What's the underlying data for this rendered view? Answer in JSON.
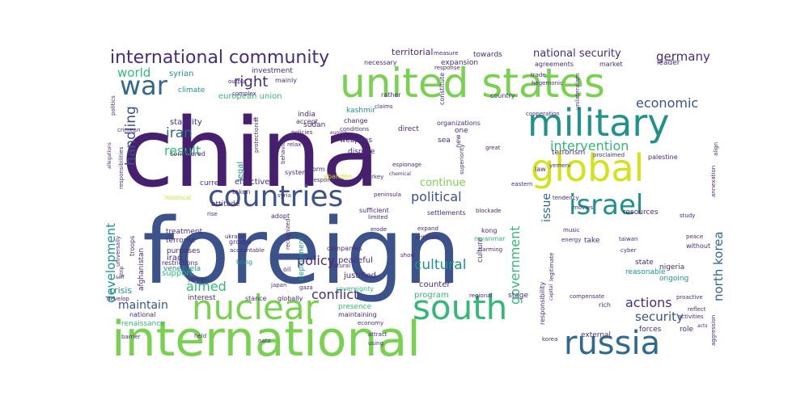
{
  "palette": {
    "dark_purple": "#46206f",
    "purple": "#472c7a",
    "indigo": "#3b528b",
    "blue": "#31688e",
    "teal": "#21918c",
    "green": "#35b779",
    "lime": "#7ad151",
    "yellow": "#d2e21b"
  },
  "words": [
    {
      "text": "china",
      "color": "dark_purple"
    },
    {
      "text": "foreign",
      "color": "indigo"
    },
    {
      "text": "united states",
      "color": "lime"
    },
    {
      "text": "international",
      "color": "lime"
    },
    {
      "text": "military",
      "color": "teal"
    },
    {
      "text": "global",
      "color": "yellow"
    },
    {
      "text": "countries",
      "color": "indigo"
    },
    {
      "text": "nuclear",
      "color": "lime"
    },
    {
      "text": "south",
      "color": "green"
    },
    {
      "text": "russia",
      "color": "blue"
    },
    {
      "text": "israel",
      "color": "teal"
    },
    {
      "text": "war",
      "color": "blue"
    },
    {
      "text": "international community",
      "color": "purple"
    },
    {
      "text": "germany",
      "color": "purple"
    },
    {
      "text": "national security",
      "color": "purple"
    },
    {
      "text": "territorial",
      "color": "purple"
    },
    {
      "text": "right",
      "color": "purple"
    },
    {
      "text": "world",
      "color": "green"
    },
    {
      "text": "iran",
      "color": "blue"
    },
    {
      "text": "result",
      "color": "green"
    },
    {
      "text": "handling",
      "color": "indigo"
    },
    {
      "text": "economic",
      "color": "indigo"
    },
    {
      "text": "intervention",
      "color": "green"
    },
    {
      "text": "political",
      "color": "indigo"
    },
    {
      "text": "continue",
      "color": "lime"
    },
    {
      "text": "cultural",
      "color": "teal"
    },
    {
      "text": "policy",
      "color": "purple"
    },
    {
      "text": "government",
      "color": "green"
    },
    {
      "text": "conflict",
      "color": "purple"
    },
    {
      "text": "north korea",
      "color": "blue"
    },
    {
      "text": "actions",
      "color": "purple"
    },
    {
      "text": "security",
      "color": "indigo"
    },
    {
      "text": "maintain",
      "color": "indigo"
    },
    {
      "text": "aimed",
      "color": "green"
    },
    {
      "text": "development",
      "color": "teal"
    },
    {
      "text": "issue",
      "color": "blue"
    },
    {
      "text": "syrian",
      "color": "teal"
    },
    {
      "text": "investment",
      "color": "purple"
    },
    {
      "text": "european union",
      "color": "green"
    },
    {
      "text": "kashmir",
      "color": "teal"
    },
    {
      "text": "stability",
      "color": "purple"
    },
    {
      "text": "india",
      "color": "purple"
    },
    {
      "text": "sudan",
      "color": "purple"
    },
    {
      "text": "weapons",
      "color": "purple"
    },
    {
      "text": "dispute",
      "color": "purple"
    },
    {
      "text": "effective",
      "color": "purple"
    },
    {
      "text": "peaceful",
      "color": "purple"
    },
    {
      "text": "justified",
      "color": "purple"
    },
    {
      "text": "support",
      "color": "green"
    },
    {
      "text": "crisis",
      "color": "teal"
    },
    {
      "text": "iraq",
      "color": "purple"
    },
    {
      "text": "terrorist",
      "color": "purple"
    },
    {
      "text": "treatment",
      "color": "purple"
    },
    {
      "text": "counter",
      "color": "purple"
    },
    {
      "text": "resources",
      "color": "purple"
    },
    {
      "text": "terrorism",
      "color": "purple"
    },
    {
      "text": "expansion",
      "color": "purple"
    },
    {
      "text": "towards",
      "color": "purple"
    },
    {
      "text": "economy",
      "color": "purple"
    },
    {
      "text": "deployment",
      "color": "teal"
    },
    {
      "text": "program",
      "color": "green"
    },
    {
      "text": "culture",
      "color": "purple"
    },
    {
      "text": "legal",
      "color": "teal"
    },
    {
      "text": "ongoing",
      "color": "teal"
    },
    {
      "text": "nigeria",
      "color": "purple"
    },
    {
      "text": "state",
      "color": "purple"
    },
    {
      "text": "reasonable",
      "color": "teal"
    },
    {
      "text": "stage",
      "color": "purple"
    },
    {
      "text": "forces",
      "color": "purple"
    },
    {
      "text": "external",
      "color": "purple"
    },
    {
      "text": "role",
      "color": "purple"
    },
    {
      "text": "interest",
      "color": "purple"
    },
    {
      "text": "presence",
      "color": "green"
    },
    {
      "text": "globally",
      "color": "purple"
    },
    {
      "text": "stance",
      "color": "purple"
    },
    {
      "text": "maintaining",
      "color": "purple"
    },
    {
      "text": "national",
      "color": "purple"
    },
    {
      "text": "renaissance",
      "color": "green"
    },
    {
      "text": "afghanistan",
      "color": "purple"
    },
    {
      "text": "venezuela",
      "color": "teal"
    },
    {
      "text": "restrictions",
      "color": "purple"
    },
    {
      "text": "purposes",
      "color": "purple"
    },
    {
      "text": "accountable",
      "color": "purple"
    },
    {
      "text": "hong",
      "color": "teal"
    },
    {
      "text": "kong",
      "color": "purple"
    },
    {
      "text": "groups",
      "color": "purple"
    },
    {
      "text": "companies",
      "color": "purple"
    },
    {
      "text": "sufficient",
      "color": "purple"
    },
    {
      "text": "limited",
      "color": "purple"
    },
    {
      "text": "settlements",
      "color": "purple"
    },
    {
      "text": "blockade",
      "color": "purple"
    },
    {
      "text": "myanmar",
      "color": "green"
    },
    {
      "text": "harming",
      "color": "purple"
    },
    {
      "text": "criticism",
      "color": "purple"
    },
    {
      "text": "erode",
      "color": "purple"
    },
    {
      "text": "expand",
      "color": "purple"
    },
    {
      "text": "natural",
      "color": "purple"
    },
    {
      "text": "oil",
      "color": "purple"
    },
    {
      "text": "japan",
      "color": "purple"
    },
    {
      "text": "gaza",
      "color": "purple"
    },
    {
      "text": "sovereignty",
      "color": "green"
    },
    {
      "text": "show",
      "color": "purple"
    },
    {
      "text": "adopt",
      "color": "purple"
    },
    {
      "text": "attitude",
      "color": "purple"
    },
    {
      "text": "historical",
      "color": "yellow"
    },
    {
      "text": "rise",
      "color": "purple"
    },
    {
      "text": "current",
      "color": "purple"
    },
    {
      "text": "taken",
      "color": "purple"
    },
    {
      "text": "form",
      "color": "purple"
    },
    {
      "text": "abandon",
      "color": "yellow"
    },
    {
      "text": "syria",
      "color": "purple"
    },
    {
      "text": "responsible",
      "color": "purple"
    },
    {
      "text": "turkey",
      "color": "purple"
    },
    {
      "text": "peninsula",
      "color": "purple"
    },
    {
      "text": "chemical",
      "color": "purple"
    },
    {
      "text": "espionage",
      "color": "purple"
    },
    {
      "text": "claims",
      "color": "purple"
    },
    {
      "text": "rather",
      "color": "purple"
    },
    {
      "text": "response",
      "color": "purple"
    },
    {
      "text": "measure",
      "color": "purple"
    },
    {
      "text": "necessary",
      "color": "purple"
    },
    {
      "text": "mainly",
      "color": "purple"
    },
    {
      "text": "complex",
      "color": "purple"
    },
    {
      "text": "output",
      "color": "purple"
    },
    {
      "text": "climate",
      "color": "teal"
    },
    {
      "text": "accept",
      "color": "purple"
    },
    {
      "text": "ii",
      "color": "purple"
    },
    {
      "text": "policies",
      "color": "purple"
    },
    {
      "text": "relax",
      "color": "purple"
    },
    {
      "text": "considered",
      "color": "purple"
    },
    {
      "text": "protectionist",
      "color": "purple"
    },
    {
      "text": "behavior",
      "color": "purple"
    },
    {
      "text": "systems",
      "color": "purple"
    },
    {
      "text": "change",
      "color": "purple"
    },
    {
      "text": "europe",
      "color": "purple"
    },
    {
      "text": "conditions",
      "color": "purple"
    },
    {
      "text": "organizations",
      "color": "purple"
    },
    {
      "text": "direct",
      "color": "purple"
    },
    {
      "text": "sea",
      "color": "purple"
    },
    {
      "text": "one",
      "color": "purple"
    },
    {
      "text": "new",
      "color": "purple"
    },
    {
      "text": "constitute",
      "color": "purple"
    },
    {
      "text": "superiority",
      "color": "purple"
    },
    {
      "text": "country",
      "color": "purple"
    },
    {
      "text": "cooperation",
      "color": "purple"
    },
    {
      "text": "trade",
      "color": "purple"
    },
    {
      "text": "hegemonic",
      "color": "purple"
    },
    {
      "text": "agreements",
      "color": "purple"
    },
    {
      "text": "market",
      "color": "purple"
    },
    {
      "text": "leader",
      "color": "purple"
    },
    {
      "text": "unilateralism",
      "color": "purple"
    },
    {
      "text": "yemeni",
      "color": "purple"
    },
    {
      "text": "proclaimed",
      "color": "purple"
    },
    {
      "text": "palestine",
      "color": "purple"
    },
    {
      "text": "great",
      "color": "purple"
    },
    {
      "text": "eastern",
      "color": "purple"
    },
    {
      "text": "law",
      "color": "purple"
    },
    {
      "text": "tendency",
      "color": "purple"
    },
    {
      "text": "movies",
      "color": "purple"
    },
    {
      "text": "study",
      "color": "purple"
    },
    {
      "text": "annexation",
      "color": "purple"
    },
    {
      "text": "taiwan",
      "color": "purple"
    },
    {
      "text": "cyber",
      "color": "purple"
    },
    {
      "text": "peace",
      "color": "purple"
    },
    {
      "text": "without",
      "color": "purple"
    },
    {
      "text": "take",
      "color": "purple"
    },
    {
      "text": "music",
      "color": "purple"
    },
    {
      "text": "energy",
      "color": "purple"
    },
    {
      "text": "legitimate",
      "color": "purple"
    },
    {
      "text": "proactive",
      "color": "purple"
    },
    {
      "text": "reflect",
      "color": "purple"
    },
    {
      "text": "activities",
      "color": "purple"
    },
    {
      "text": "acts",
      "color": "purple"
    },
    {
      "text": "compensate",
      "color": "purple"
    },
    {
      "text": "rich",
      "color": "purple"
    },
    {
      "text": "regional",
      "color": "purple"
    },
    {
      "text": "capital",
      "color": "purple"
    },
    {
      "text": "korea",
      "color": "purple"
    },
    {
      "text": "aggression",
      "color": "purple"
    },
    {
      "text": "responsibility",
      "color": "purple"
    },
    {
      "text": "using",
      "color": "purple"
    },
    {
      "text": "attract",
      "color": "purple"
    },
    {
      "text": "nato",
      "color": "purple"
    },
    {
      "text": "held",
      "color": "purple"
    },
    {
      "text": "barrier",
      "color": "purple"
    },
    {
      "text": "develop",
      "color": "purple"
    },
    {
      "text": "troops",
      "color": "purple"
    },
    {
      "text": "universally",
      "color": "purple"
    },
    {
      "text": "self",
      "color": "purple"
    },
    {
      "text": "strip",
      "color": "purple"
    },
    {
      "text": "yemen",
      "color": "purple"
    },
    {
      "text": "ukraine",
      "color": "purple"
    },
    {
      "text": "recognized",
      "color": "purple"
    },
    {
      "text": "allegations",
      "color": "purple"
    },
    {
      "text": "crimean",
      "color": "purple"
    },
    {
      "text": "politics",
      "color": "purple"
    },
    {
      "text": "responsibilities",
      "color": "purple"
    },
    {
      "text": "align",
      "color": "purple"
    }
  ]
}
